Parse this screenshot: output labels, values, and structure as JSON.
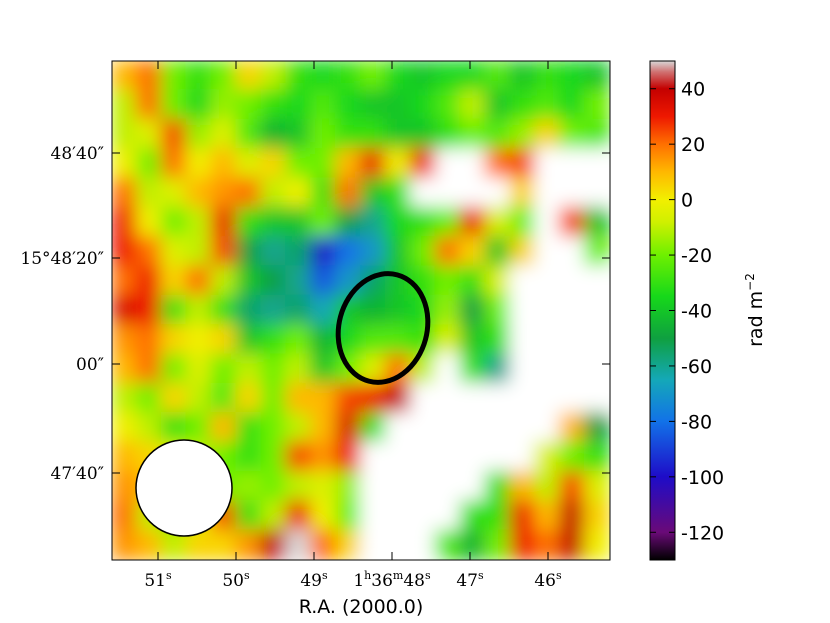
{
  "chart_data": {
    "type": "heatmap",
    "title": "",
    "xlabel": "R.A. (2000.0)",
    "ylabel": "",
    "x_ticks": [
      {
        "base": "51",
        "sup": "s"
      },
      {
        "base": "50",
        "sup": "s"
      },
      {
        "base": "49",
        "sup": "s"
      },
      {
        "base": "1",
        "sup": "h",
        "base2": "36",
        "sup2": "m",
        "base3": "48",
        "sup3": "s"
      },
      {
        "base": "47",
        "sup": "s"
      },
      {
        "base": "46",
        "sup": "s"
      }
    ],
    "y_ticks": [
      "48′40″",
      "15°48′20″",
      "00″",
      "47′40″"
    ],
    "colorbar": {
      "label": "rad m",
      "label_exponent": "−2",
      "range": [
        -130,
        50
      ],
      "ticks": [
        "40",
        "20",
        "0",
        "-20",
        "-40",
        "-60",
        "-80",
        "-100",
        "-120"
      ],
      "tick_values": [
        40,
        20,
        0,
        -20,
        -40,
        -60,
        -80,
        -100,
        -120
      ],
      "colormap_stops": [
        {
          "value": -130,
          "color": "#000000"
        },
        {
          "value": -120,
          "color": "#6a0a78"
        },
        {
          "value": -100,
          "color": "#1e0cc8"
        },
        {
          "value": -80,
          "color": "#1272e8"
        },
        {
          "value": -65,
          "color": "#14a8b8"
        },
        {
          "value": -50,
          "color": "#0fa040"
        },
        {
          "value": -35,
          "color": "#16d81a"
        },
        {
          "value": -20,
          "color": "#6ef000"
        },
        {
          "value": -8,
          "color": "#d0f000"
        },
        {
          "value": 0,
          "color": "#f2ef00"
        },
        {
          "value": 10,
          "color": "#ffb800"
        },
        {
          "value": 20,
          "color": "#ff7000"
        },
        {
          "value": 30,
          "color": "#ee1800"
        },
        {
          "value": 40,
          "color": "#c40000"
        },
        {
          "value": 46,
          "color": "#d07070"
        },
        {
          "value": 50,
          "color": "#d8d8d8"
        }
      ]
    },
    "map_values_rad_m2": [
      [
        10,
        20,
        -20,
        -30,
        -20,
        5,
        -10,
        -30,
        -35,
        -30,
        -20,
        -35,
        -40,
        -35,
        -35,
        -25,
        -40,
        -30,
        -35,
        -40
      ],
      [
        -10,
        20,
        -20,
        -35,
        -15,
        -20,
        -30,
        -35,
        -25,
        -35,
        -40,
        -40,
        -35,
        -25,
        -10,
        -40,
        -30,
        -25,
        -35,
        -20
      ],
      [
        -10,
        -5,
        25,
        -15,
        -5,
        -25,
        -45,
        -40,
        -20,
        -30,
        -30,
        -40,
        -40,
        -30,
        -20,
        -25,
        -15,
        5,
        -20,
        -25
      ],
      [
        0,
        -20,
        20,
        0,
        10,
        -5,
        5,
        -20,
        -20,
        10,
        30,
        0,
        30,
        null,
        null,
        20,
        25,
        null,
        null,
        null
      ],
      [
        20,
        -10,
        -5,
        10,
        15,
        20,
        -10,
        0,
        -30,
        20,
        -40,
        -30,
        null,
        null,
        null,
        null,
        5,
        null,
        null,
        null
      ],
      [
        30,
        0,
        -20,
        -10,
        30,
        -30,
        -40,
        -40,
        -20,
        -50,
        -60,
        -35,
        -30,
        -20,
        30,
        -5,
        -20,
        null,
        25,
        -40
      ],
      [
        30,
        20,
        -5,
        -10,
        25,
        -50,
        -60,
        -55,
        -100,
        -80,
        -70,
        -40,
        -20,
        20,
        5,
        -40,
        5,
        null,
        null,
        -20
      ],
      [
        20,
        30,
        5,
        20,
        -10,
        -40,
        -50,
        -60,
        -85,
        -70,
        -55,
        -40,
        -30,
        -20,
        -30,
        -5,
        null,
        null,
        null,
        null
      ],
      [
        35,
        30,
        -30,
        -10,
        -30,
        -55,
        -60,
        -55,
        -65,
        -40,
        -45,
        -40,
        -35,
        -15,
        -50,
        -20,
        null,
        null,
        null,
        null
      ],
      [
        15,
        20,
        5,
        0,
        5,
        -40,
        -30,
        -20,
        -45,
        -35,
        -25,
        -25,
        -30,
        -5,
        -40,
        -30,
        null,
        null,
        null,
        null
      ],
      [
        10,
        20,
        -20,
        -5,
        -20,
        -10,
        -20,
        -10,
        -40,
        -20,
        -5,
        20,
        -10,
        null,
        -30,
        -60,
        null,
        null,
        null,
        null
      ],
      [
        -10,
        -20,
        5,
        -10,
        -25,
        5,
        -20,
        10,
        10,
        25,
        30,
        40,
        null,
        null,
        null,
        null,
        null,
        null,
        null,
        null
      ],
      [
        0,
        -10,
        -30,
        -20,
        10,
        -30,
        -20,
        -10,
        10,
        35,
        -30,
        null,
        null,
        null,
        null,
        null,
        null,
        null,
        10,
        -50
      ],
      [
        10,
        5,
        -5,
        -10,
        -20,
        -30,
        -20,
        25,
        15,
        30,
        null,
        null,
        null,
        null,
        null,
        null,
        null,
        -5,
        -20,
        -30
      ],
      [
        15,
        10,
        -20,
        -30,
        -20,
        -15,
        -20,
        -10,
        -5,
        -15,
        null,
        null,
        null,
        null,
        null,
        -30,
        10,
        -10,
        25,
        -5
      ],
      [
        20,
        -10,
        -20,
        -5,
        25,
        -30,
        -10,
        30,
        0,
        -20,
        null,
        null,
        null,
        null,
        -30,
        -30,
        30,
        10,
        40,
        5
      ],
      [
        15,
        10,
        -10,
        5,
        5,
        15,
        40,
        50,
        20,
        5,
        null,
        null,
        null,
        -25,
        -45,
        -20,
        30,
        20,
        40,
        0
      ]
    ],
    "blank_regions_no_data": true,
    "annotations": [
      {
        "type": "ellipse",
        "center_ra": "1h36m48.2s",
        "center_dec": "+15°48'07\"",
        "style": "black outline",
        "note": "source region"
      },
      {
        "type": "circle",
        "center_ra": "1h36m50.6s",
        "center_dec": "+15°47'36\"",
        "style": "white filled, black outline",
        "note": "beam"
      }
    ]
  }
}
